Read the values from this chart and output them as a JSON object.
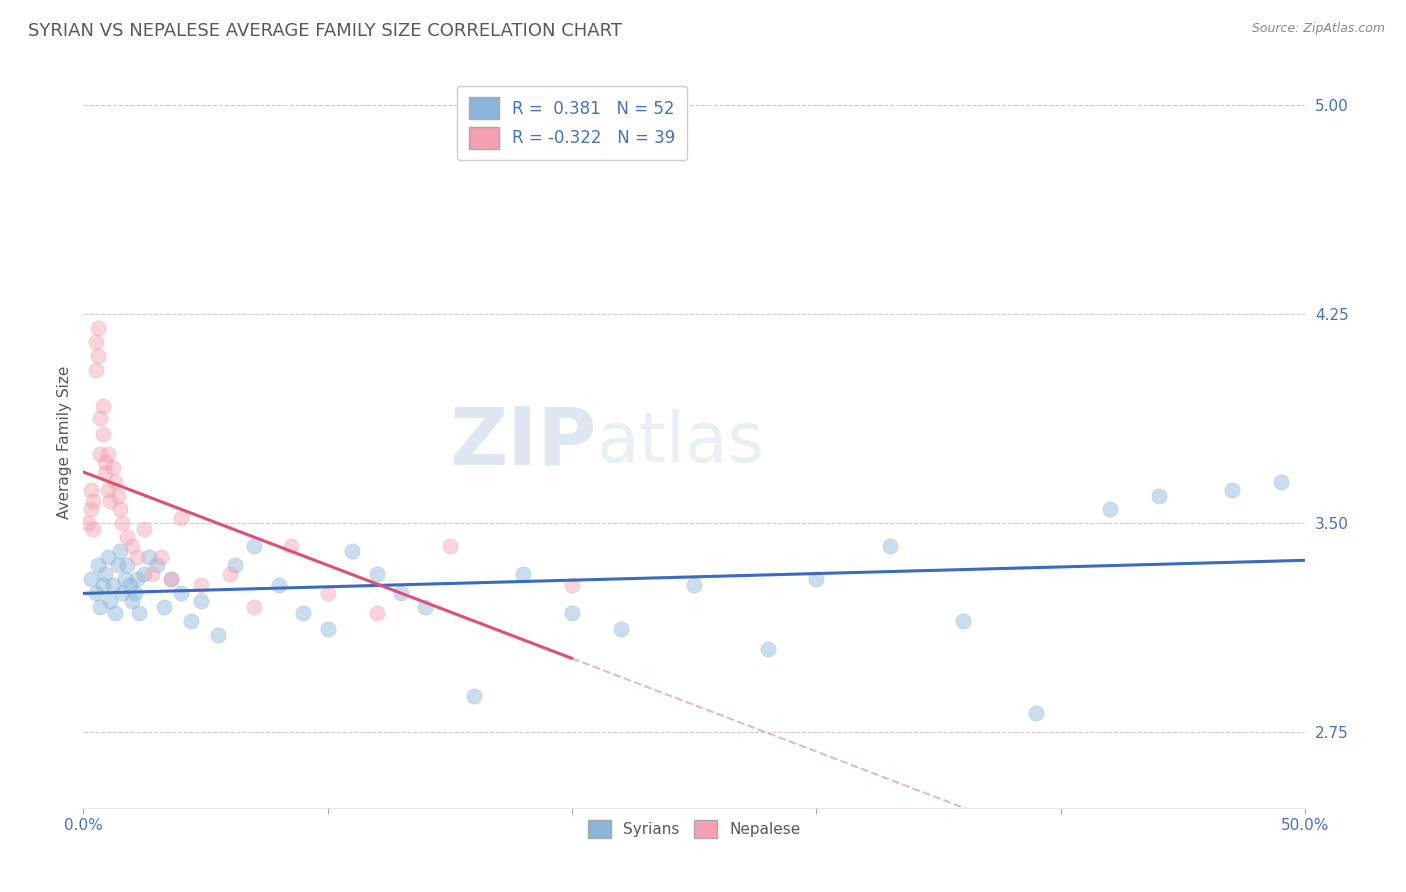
{
  "title": "SYRIAN VS NEPALESE AVERAGE FAMILY SIZE CORRELATION CHART",
  "source": "Source: ZipAtlas.com",
  "ylabel": "Average Family Size",
  "xlim": [
    0.0,
    0.5
  ],
  "ylim": [
    2.48,
    5.1
  ],
  "yticks": [
    2.75,
    3.5,
    4.25,
    5.0
  ],
  "xticks": [
    0.0,
    0.1,
    0.2,
    0.3,
    0.4,
    0.5
  ],
  "xtick_labels": [
    "0.0%",
    "",
    "",
    "",
    "",
    "50.0%"
  ],
  "ytick_color": "#4472c4",
  "title_color": "#595959",
  "title_fontsize": 13,
  "syrians_color": "#8ab4d9",
  "nepalese_color": "#f4a0b0",
  "syrians_line_color": "#3a6bbf",
  "nepalese_line_color": "#e05070",
  "nepalese_line_dash_color": "#d4a0a8",
  "syrians_x": [
    0.003,
    0.005,
    0.006,
    0.007,
    0.008,
    0.009,
    0.01,
    0.011,
    0.012,
    0.013,
    0.014,
    0.015,
    0.016,
    0.017,
    0.018,
    0.019,
    0.02,
    0.021,
    0.022,
    0.023,
    0.025,
    0.027,
    0.03,
    0.033,
    0.036,
    0.04,
    0.044,
    0.048,
    0.055,
    0.062,
    0.07,
    0.08,
    0.09,
    0.1,
    0.11,
    0.12,
    0.13,
    0.14,
    0.16,
    0.18,
    0.2,
    0.22,
    0.25,
    0.28,
    0.3,
    0.33,
    0.36,
    0.39,
    0.42,
    0.44,
    0.47,
    0.49
  ],
  "syrians_y": [
    3.3,
    3.25,
    3.35,
    3.2,
    3.28,
    3.32,
    3.38,
    3.22,
    3.28,
    3.18,
    3.35,
    3.4,
    3.25,
    3.3,
    3.35,
    3.28,
    3.22,
    3.25,
    3.3,
    3.18,
    3.32,
    3.38,
    3.35,
    3.2,
    3.3,
    3.25,
    3.15,
    3.22,
    3.1,
    3.35,
    3.42,
    3.28,
    3.18,
    3.12,
    3.4,
    3.32,
    3.25,
    3.2,
    2.88,
    3.32,
    3.18,
    3.12,
    3.28,
    3.05,
    3.3,
    3.42,
    3.15,
    2.82,
    3.55,
    3.6,
    3.62,
    3.65
  ],
  "nepalese_x": [
    0.002,
    0.003,
    0.003,
    0.004,
    0.004,
    0.005,
    0.005,
    0.006,
    0.006,
    0.007,
    0.007,
    0.008,
    0.008,
    0.009,
    0.009,
    0.01,
    0.01,
    0.011,
    0.012,
    0.013,
    0.014,
    0.015,
    0.016,
    0.018,
    0.02,
    0.022,
    0.025,
    0.028,
    0.032,
    0.036,
    0.04,
    0.048,
    0.06,
    0.07,
    0.085,
    0.1,
    0.12,
    0.15,
    0.2
  ],
  "nepalese_y": [
    3.5,
    3.55,
    3.62,
    3.48,
    3.58,
    4.05,
    4.15,
    4.2,
    4.1,
    3.88,
    3.75,
    3.82,
    3.92,
    3.72,
    3.68,
    3.62,
    3.75,
    3.58,
    3.7,
    3.65,
    3.6,
    3.55,
    3.5,
    3.45,
    3.42,
    3.38,
    3.48,
    3.32,
    3.38,
    3.3,
    3.52,
    3.28,
    3.32,
    3.2,
    3.42,
    3.25,
    3.18,
    3.42,
    3.28
  ],
  "watermark_zip": "ZIP",
  "watermark_atlas": "atlas",
  "grid_color": "#cccccc",
  "bg_color": "#ffffff",
  "scatter_size": 120,
  "scatter_alpha": 0.45,
  "legend_fontsize": 12,
  "ylabel_fontsize": 11
}
